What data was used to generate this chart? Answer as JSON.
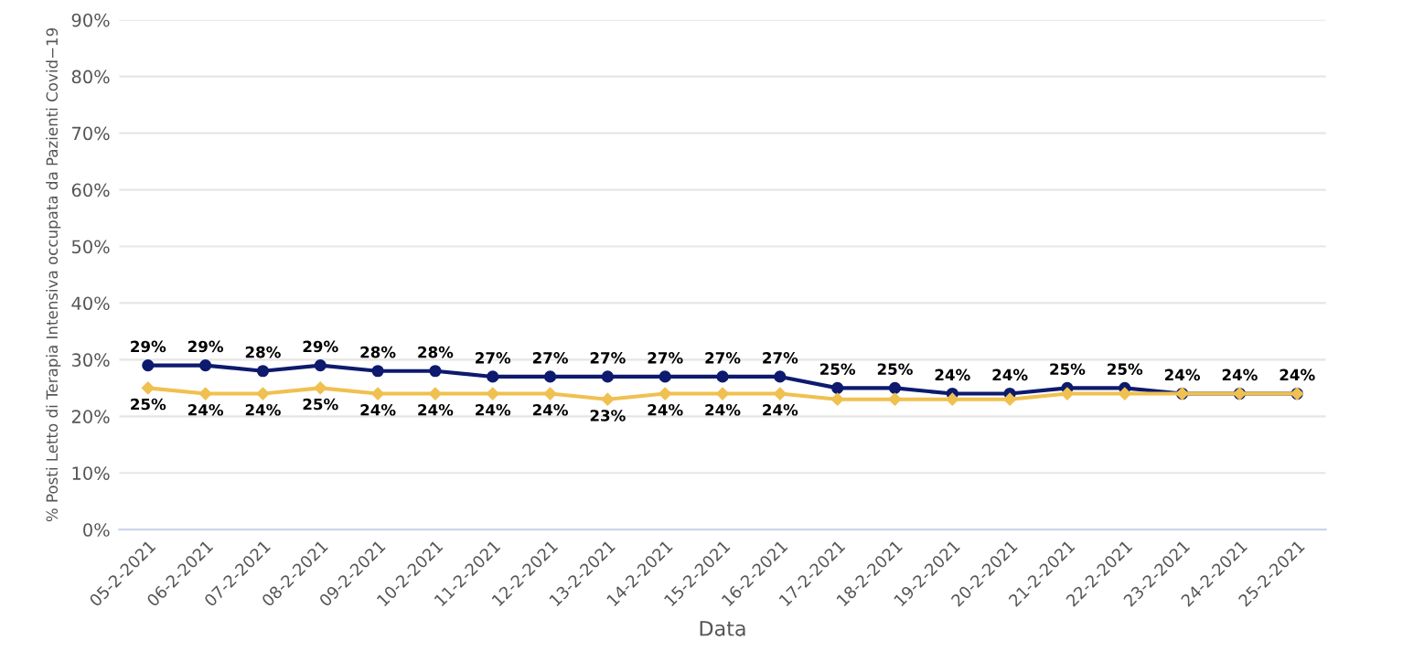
{
  "chart_data": {
    "type": "line",
    "xlabel": "Data",
    "ylabel": "% Posti Letto di Terapia Intensiva occupata da Pazienti Covid−19",
    "categories": [
      "05-2-2021",
      "06-2-2021",
      "07-2-2021",
      "08-2-2021",
      "09-2-2021",
      "10-2-2021",
      "11-2-2021",
      "12-2-2021",
      "13-2-2021",
      "14-2-2021",
      "15-2-2021",
      "16-2-2021",
      "17-2-2021",
      "18-2-2021",
      "19-2-2021",
      "20-2-2021",
      "21-2-2021",
      "22-2-2021",
      "23-2-2021",
      "24-2-2021",
      "25-2-2021"
    ],
    "series": [
      {
        "color": "#0d1a6e",
        "marker": "circle",
        "values": [
          29,
          29,
          28,
          29,
          28,
          28,
          27,
          27,
          27,
          27,
          27,
          27,
          25,
          25,
          24,
          24,
          25,
          25,
          24,
          24,
          24
        ],
        "value_labels": [
          "29%",
          "29%",
          "28%",
          "29%",
          "28%",
          "28%",
          "27%",
          "27%",
          "27%",
          "27%",
          "27%",
          "27%",
          "25%",
          "25%",
          "24%",
          "24%",
          "25%",
          "25%",
          "24%",
          "24%",
          "24%"
        ]
      },
      {
        "color": "#f0c050",
        "marker": "diamond",
        "values": [
          25,
          24,
          24,
          25,
          24,
          24,
          24,
          24,
          23,
          24,
          24,
          24,
          23,
          23,
          23,
          23,
          24,
          24,
          24,
          24,
          24
        ],
        "value_labels": [
          "25%",
          "24%",
          "24%",
          "25%",
          "24%",
          "24%",
          "24%",
          "24%",
          "23%",
          "24%",
          "24%",
          "24%",
          null,
          null,
          null,
          null,
          null,
          null,
          null,
          null,
          null
        ]
      }
    ],
    "ylim": [
      0,
      90
    ],
    "yticks": [
      {
        "value": 0,
        "label": "0%"
      },
      {
        "value": 10,
        "label": "10%"
      },
      {
        "value": 20,
        "label": "20%"
      },
      {
        "value": 30,
        "label": "30%"
      },
      {
        "value": 40,
        "label": "40%"
      },
      {
        "value": 50,
        "label": "50%"
      },
      {
        "value": 60,
        "label": "60%"
      },
      {
        "value": 70,
        "label": "70%"
      },
      {
        "value": 80,
        "label": "80%"
      },
      {
        "value": 90,
        "label": "90%"
      }
    ],
    "grid": "y",
    "legend": false
  }
}
